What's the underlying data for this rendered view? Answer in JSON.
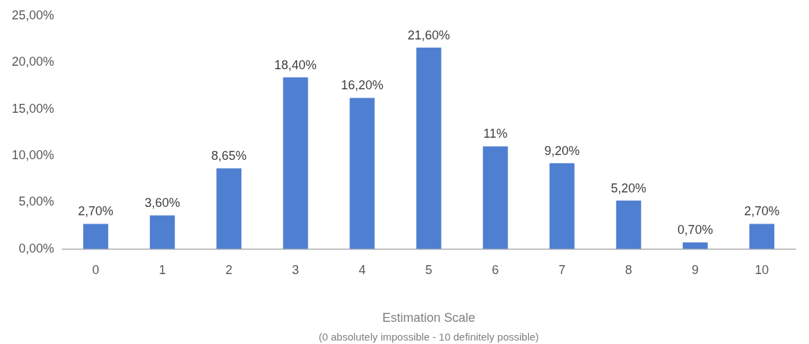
{
  "chart_data": {
    "type": "bar",
    "xlabel": "Estimation Scale",
    "annotations": [
      "(0 absolutely impossible - 10 definitely possible)"
    ],
    "categories": [
      "0",
      "1",
      "2",
      "3",
      "4",
      "5",
      "6",
      "7",
      "8",
      "9",
      "10"
    ],
    "values": [
      2.7,
      3.6,
      8.65,
      18.4,
      16.2,
      21.6,
      11,
      9.2,
      5.2,
      0.7,
      2.7
    ],
    "value_labels": [
      "2,70%",
      "3,60%",
      "8,65%",
      "18,40%",
      "16,20%",
      "21,60%",
      "11%",
      "9,20%",
      "5,20%",
      "0,70%",
      "2,70%"
    ],
    "color": "#4f7fd0",
    "ylim": [
      0,
      25
    ],
    "yticks": [
      {
        "value": 0,
        "label": "0,00%"
      },
      {
        "value": 5,
        "label": "5,00%"
      },
      {
        "value": 10,
        "label": "10,00%"
      },
      {
        "value": 15,
        "label": "15,00%"
      },
      {
        "value": 20,
        "label": "20,00%"
      },
      {
        "value": 25,
        "label": "25,00%"
      }
    ],
    "grid": false,
    "legend": false
  }
}
